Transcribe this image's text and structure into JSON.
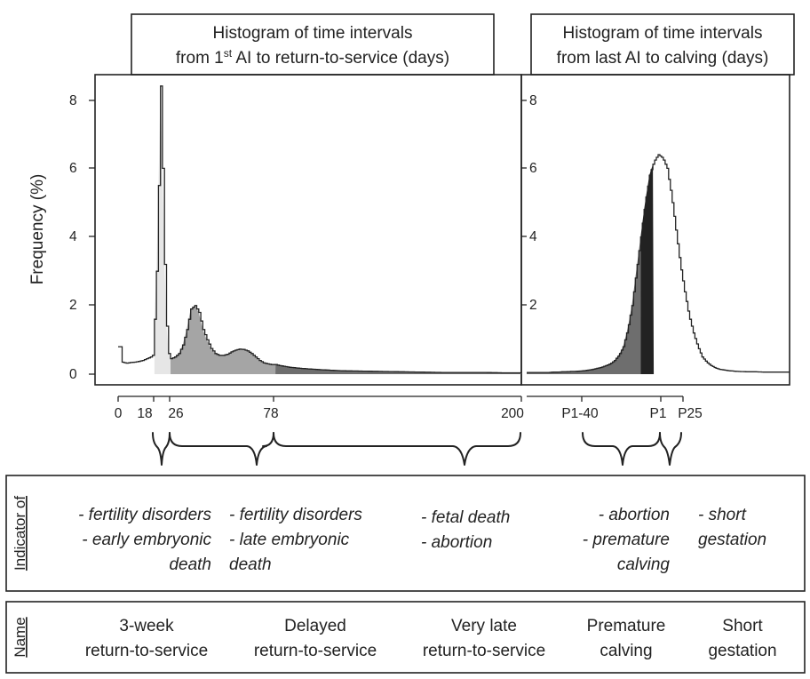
{
  "chart_data": [
    {
      "type": "area",
      "title": "Histogram of time intervals from 1st AI to return-to-service (days)",
      "ylabel": "Frequency (%)",
      "xlabel": "",
      "x_ticks": [
        "0",
        "18",
        "26",
        "78",
        "200"
      ],
      "y_ticks": [
        "0",
        "2",
        "4",
        "6",
        "8"
      ],
      "xlim": [
        0,
        200
      ],
      "ylim": [
        0,
        8.5
      ],
      "grid": false,
      "series": [
        {
          "x": [
            0,
            1,
            2,
            4,
            6,
            8,
            10,
            12,
            14,
            16,
            17,
            18,
            19,
            20,
            21,
            22,
            23,
            24,
            25,
            26,
            28,
            30,
            32,
            34,
            36,
            38,
            40,
            42,
            44,
            46,
            48,
            50,
            52,
            54,
            56,
            58,
            60,
            62,
            64,
            66,
            68,
            70,
            72,
            74,
            76,
            78,
            80,
            85,
            90,
            95,
            100,
            110,
            120,
            130,
            140,
            150,
            160,
            170,
            180,
            190,
            200
          ],
          "y": [
            0.8,
            0.8,
            0.35,
            0.32,
            0.34,
            0.35,
            0.37,
            0.4,
            0.45,
            0.5,
            0.55,
            1.6,
            3.0,
            5.5,
            8.4,
            6.0,
            3.2,
            1.4,
            0.6,
            0.45,
            0.5,
            0.6,
            0.85,
            1.3,
            1.9,
            2.0,
            1.8,
            1.3,
            1.0,
            0.75,
            0.6,
            0.55,
            0.55,
            0.58,
            0.65,
            0.7,
            0.73,
            0.72,
            0.68,
            0.6,
            0.5,
            0.4,
            0.33,
            0.3,
            0.28,
            0.28,
            0.25,
            0.2,
            0.17,
            0.15,
            0.13,
            0.1,
            0.09,
            0.08,
            0.07,
            0.06,
            0.05,
            0.05,
            0.05,
            0.04,
            0.04
          ]
        }
      ],
      "shaded_regions": [
        {
          "from": 18,
          "to": 26,
          "color": "#e6e6e6"
        },
        {
          "from": 26,
          "to": 78,
          "color": "#a5a5a5"
        },
        {
          "from": 78,
          "to": 200,
          "color": "#6e6e6e"
        }
      ]
    },
    {
      "type": "area",
      "title": "Histogram of time intervals from last AI to calving (days)",
      "ylabel": "",
      "xlabel": "",
      "x_ticks": [
        "P1-40",
        "P1",
        "P25"
      ],
      "y_ticks": [
        "2",
        "4",
        "6",
        "8"
      ],
      "ylim": [
        0,
        8.5
      ],
      "grid": false,
      "series": [
        {
          "x": [
            0,
            10,
            20,
            25,
            30,
            35,
            40,
            45,
            50,
            55,
            60,
            65,
            70,
            75,
            80,
            85,
            90,
            95,
            100,
            105,
            110,
            115,
            120,
            125,
            130,
            135,
            140,
            145,
            150,
            155,
            160,
            165,
            170,
            175,
            180,
            185,
            190,
            195,
            200,
            205,
            210,
            215,
            220,
            225,
            230,
            240,
            250,
            260,
            270,
            280,
            300
          ],
          "y": [
            0.05,
            0.05,
            0.05,
            0.05,
            0.06,
            0.06,
            0.07,
            0.07,
            0.08,
            0.08,
            0.09,
            0.1,
            0.12,
            0.14,
            0.17,
            0.2,
            0.25,
            0.3,
            0.4,
            0.55,
            0.8,
            1.3,
            2.0,
            3.0,
            4.0,
            5.0,
            5.8,
            6.2,
            6.4,
            6.3,
            6.0,
            5.2,
            4.2,
            3.2,
            2.4,
            1.7,
            1.2,
            0.8,
            0.5,
            0.35,
            0.25,
            0.18,
            0.14,
            0.12,
            0.1,
            0.08,
            0.07,
            0.07,
            0.06,
            0.06,
            0.06
          ]
        }
      ],
      "shaded_regions": [
        {
          "from": 130,
          "to": 145,
          "color": "#222222"
        },
        {
          "from": 0,
          "to": 130,
          "color": "#6e6e6e"
        }
      ]
    }
  ],
  "left_panel": {
    "title_line1": "Histogram of time intervals",
    "title_line2_pre": "from 1",
    "title_line2_sup": "st",
    "title_line2_post": " AI to return-to-service (days)",
    "ylabel": "Frequency (%)",
    "yticks": [
      "0",
      "2",
      "4",
      "6",
      "8"
    ],
    "xticks": [
      "0",
      "18",
      "26",
      "78",
      "200"
    ]
  },
  "right_panel": {
    "title_line1": "Histogram of time intervals",
    "title_line2": "from last AI to calving (days)",
    "yticks": [
      "2",
      "4",
      "6",
      "8"
    ],
    "xticks": [
      "P1-40",
      "P1",
      "P25"
    ]
  },
  "indicator_row": {
    "label": "Indicator of",
    "col1": [
      "- fertility disorders",
      "- early embryonic",
      "death"
    ],
    "col2": [
      "- fertility disorders",
      "- late embryonic",
      "death"
    ],
    "col3": [
      "- fetal death",
      "- abortion"
    ],
    "col4": [
      "- abortion",
      "- premature",
      "calving"
    ],
    "col5": [
      "- short",
      "gestation"
    ]
  },
  "name_row": {
    "label": "Name",
    "names": [
      [
        "3-week",
        "return-to-service"
      ],
      [
        "Delayed",
        "return-to-service"
      ],
      [
        "Very late",
        "return-to-service"
      ],
      [
        "Premature",
        "calving"
      ],
      [
        "Short",
        "gestation"
      ]
    ]
  },
  "colors": {
    "three_week": "#e6e6e6",
    "delayed": "#a5a5a5",
    "very_late": "#6e6e6e",
    "premature": "#6e6e6e",
    "short_gestation": "#222222",
    "line": "#222222"
  }
}
